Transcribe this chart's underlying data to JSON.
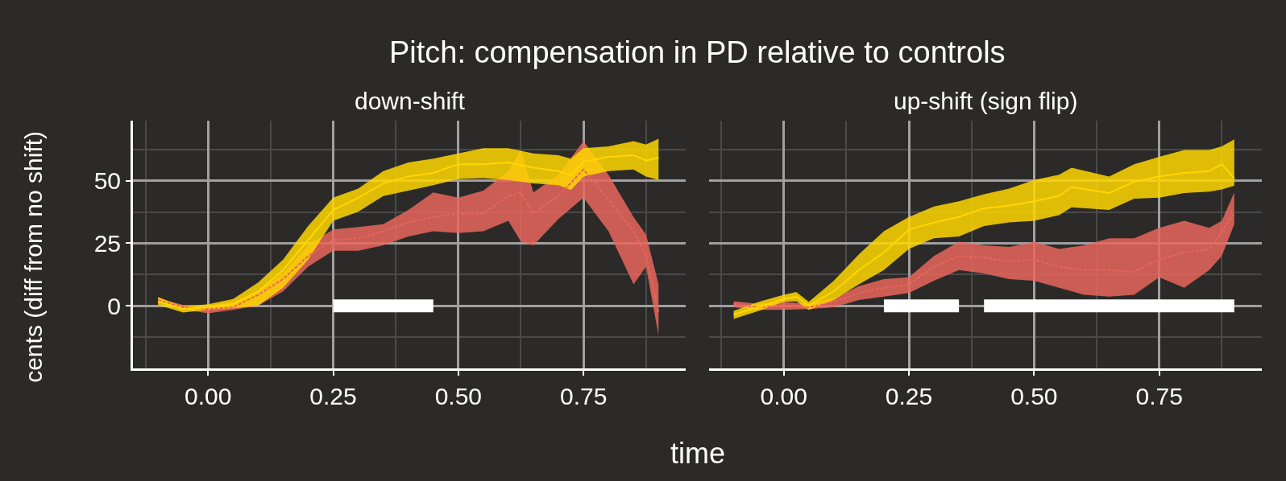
{
  "chart_data": [
    {
      "type": "line",
      "title": "Pitch: compensation in PD relative to controls",
      "subtitle": "down-shift",
      "ylabel": "cents (diff from no shift)",
      "xlabel": "time",
      "grid": true,
      "xlim": [
        -0.15,
        0.955
      ],
      "ylim": [
        -25,
        74
      ],
      "xticks": [
        {
          "value": 0,
          "label": "0.00"
        },
        {
          "value": 0.25,
          "label": "0.25"
        },
        {
          "value": 0.5,
          "label": "0.50"
        },
        {
          "value": 0.75,
          "label": "0.75"
        }
      ],
      "yticks": [
        0,
        25,
        50
      ],
      "series": [
        {
          "color": "#e8665c",
          "line_style": "dotted",
          "x": [
            -0.1,
            -0.05,
            0,
            0.05,
            0.1,
            0.15,
            0.2,
            0.25,
            0.3,
            0.35,
            0.4,
            0.45,
            0.5,
            0.55,
            0.6,
            0.625,
            0.65,
            0.7,
            0.75,
            0.8,
            0.85,
            0.875,
            0.9
          ],
          "values": [
            2.3,
            -0.6,
            -1.3,
            -0.6,
            4.4,
            10.7,
            19.9,
            26.3,
            27,
            29.8,
            33.3,
            35.5,
            36.9,
            36.9,
            43.9,
            45.3,
            36.9,
            43.9,
            54.5,
            42.5,
            29.8,
            19.9,
            -2.7
          ],
          "upper": [
            3,
            0.4,
            0.1,
            1.6,
            5.8,
            12.9,
            24.2,
            30.5,
            31.5,
            32.6,
            38.3,
            45.3,
            43.2,
            46,
            53.8,
            62.3,
            45.3,
            52.4,
            65.8,
            52.4,
            35.5,
            28.4,
            8.6
          ],
          "lower": [
            1.6,
            -1.3,
            -3,
            -1.6,
            0.1,
            5.8,
            15.7,
            22,
            22,
            24.2,
            27.7,
            29.8,
            29.1,
            29.8,
            34,
            25.6,
            24.2,
            34.7,
            43.2,
            29.8,
            8.6,
            15.7,
            -11.9
          ]
        },
        {
          "color": "#ffd700",
          "line_style": "solid",
          "x": [
            -0.1,
            -0.05,
            0,
            0.05,
            0.1,
            0.15,
            0.2,
            0.25,
            0.3,
            0.35,
            0.4,
            0.45,
            0.5,
            0.55,
            0.6,
            0.65,
            0.7,
            0.725,
            0.75,
            0.8,
            0.85,
            0.875,
            0.9
          ],
          "values": [
            1.8,
            -1.3,
            -0.6,
            0.6,
            5.8,
            14.3,
            26.3,
            38.3,
            43.2,
            48.9,
            51.7,
            53.1,
            56.6,
            56.6,
            57.3,
            55.2,
            53.8,
            52,
            57.6,
            59.5,
            60.2,
            58,
            59.2
          ],
          "upper": [
            3.5,
            -0.3,
            0.6,
            2.7,
            9.3,
            18.5,
            31.9,
            43.2,
            46.8,
            53.8,
            57.3,
            58.8,
            60.9,
            63,
            63,
            60.9,
            60.2,
            58.8,
            63,
            63.7,
            65.8,
            64.4,
            66.8
          ],
          "lower": [
            0.4,
            -2.7,
            -1.6,
            -1,
            0.1,
            7.2,
            18.5,
            34,
            37.6,
            43.9,
            46,
            48.2,
            50.7,
            51,
            50.3,
            48.9,
            48.2,
            46.3,
            51.7,
            53.8,
            54.5,
            51.7,
            50.3
          ]
        },
        {
          "color": "#ffffff",
          "line_style": "solid",
          "x": [
            0.25,
            0.45
          ],
          "values": [
            0,
            0
          ]
        }
      ]
    },
    {
      "type": "line",
      "subtitle": "up-shift (sign flip)",
      "grid": true,
      "tick_labels": "x",
      "xlim": [
        -0.15,
        0.955
      ],
      "ylim": [
        -25,
        74
      ],
      "xticks": [
        {
          "value": 0,
          "label": "0.00"
        },
        {
          "value": 0.25,
          "label": "0.25"
        },
        {
          "value": 0.5,
          "label": "0.50"
        },
        {
          "value": 0.75,
          "label": "0.75"
        }
      ],
      "yticks": [
        0,
        25,
        50
      ],
      "series": [
        {
          "color": "#e8665c",
          "line_style": "dotted",
          "x": [
            -0.1,
            -0.05,
            0,
            0.05,
            0.1,
            0.15,
            0.2,
            0.25,
            0.3,
            0.35,
            0.4,
            0.45,
            0.5,
            0.55,
            0.6,
            0.65,
            0.7,
            0.75,
            0.8,
            0.85,
            0.875,
            0.9
          ],
          "values": [
            0.8,
            -0.6,
            0.1,
            -0.6,
            1.6,
            5.1,
            7.2,
            8.6,
            15.7,
            19.9,
            19.2,
            17.8,
            18.5,
            15.7,
            14.3,
            14.3,
            13.6,
            18.5,
            21.3,
            22.7,
            29.8,
            36.9
          ],
          "upper": [
            1.8,
            0.8,
            1.6,
            0.8,
            3,
            7.9,
            10.7,
            11.4,
            19.9,
            25.6,
            24.2,
            23.5,
            25.6,
            22.7,
            24.2,
            27,
            27,
            31.2,
            34,
            31.2,
            34,
            45.3
          ],
          "lower": [
            -0.6,
            -1.6,
            -1.6,
            -1.3,
            -0.6,
            2.3,
            3.7,
            5.1,
            10,
            14.3,
            12.9,
            10.7,
            10,
            7.2,
            4.4,
            3.7,
            4.4,
            11.4,
            7.2,
            14.3,
            19.9,
            32.6
          ]
        },
        {
          "color": "#ffd700",
          "line_style": "solid",
          "x": [
            -0.1,
            -0.05,
            0,
            0.025,
            0.05,
            0.1,
            0.15,
            0.2,
            0.25,
            0.3,
            0.35,
            0.4,
            0.45,
            0.5,
            0.55,
            0.575,
            0.65,
            0.7,
            0.75,
            0.8,
            0.85,
            0.875,
            0.9
          ],
          "values": [
            -3.4,
            -0.6,
            2.7,
            3.7,
            0.1,
            5.8,
            14.3,
            21.3,
            30.5,
            33.3,
            35.5,
            39,
            40,
            41.8,
            43.9,
            47.5,
            45.1,
            49.6,
            51.7,
            53.1,
            53.8,
            56.6,
            51
          ],
          "upper": [
            -2,
            1.6,
            4.4,
            5.5,
            1.6,
            10,
            20.6,
            29.8,
            35.5,
            39.7,
            41.8,
            44.6,
            46.8,
            50.3,
            52.4,
            55.2,
            51.7,
            56.6,
            59.5,
            62.3,
            62.3,
            63.7,
            66.5
          ],
          "lower": [
            -5.2,
            -2,
            1.6,
            1.8,
            -1.6,
            2.3,
            8.6,
            14.3,
            22.7,
            27,
            27.7,
            31.9,
            33.3,
            34,
            36.2,
            39.4,
            38.3,
            42.8,
            43.2,
            45.1,
            45.6,
            46.5,
            48
          ]
        },
        {
          "color": "#ffffff",
          "line_style": "solid",
          "x": [
            0.2,
            0.35,
            0.375,
            0.4,
            0.9
          ],
          "values": [
            0,
            0,
            null,
            0,
            0
          ]
        }
      ]
    }
  ]
}
